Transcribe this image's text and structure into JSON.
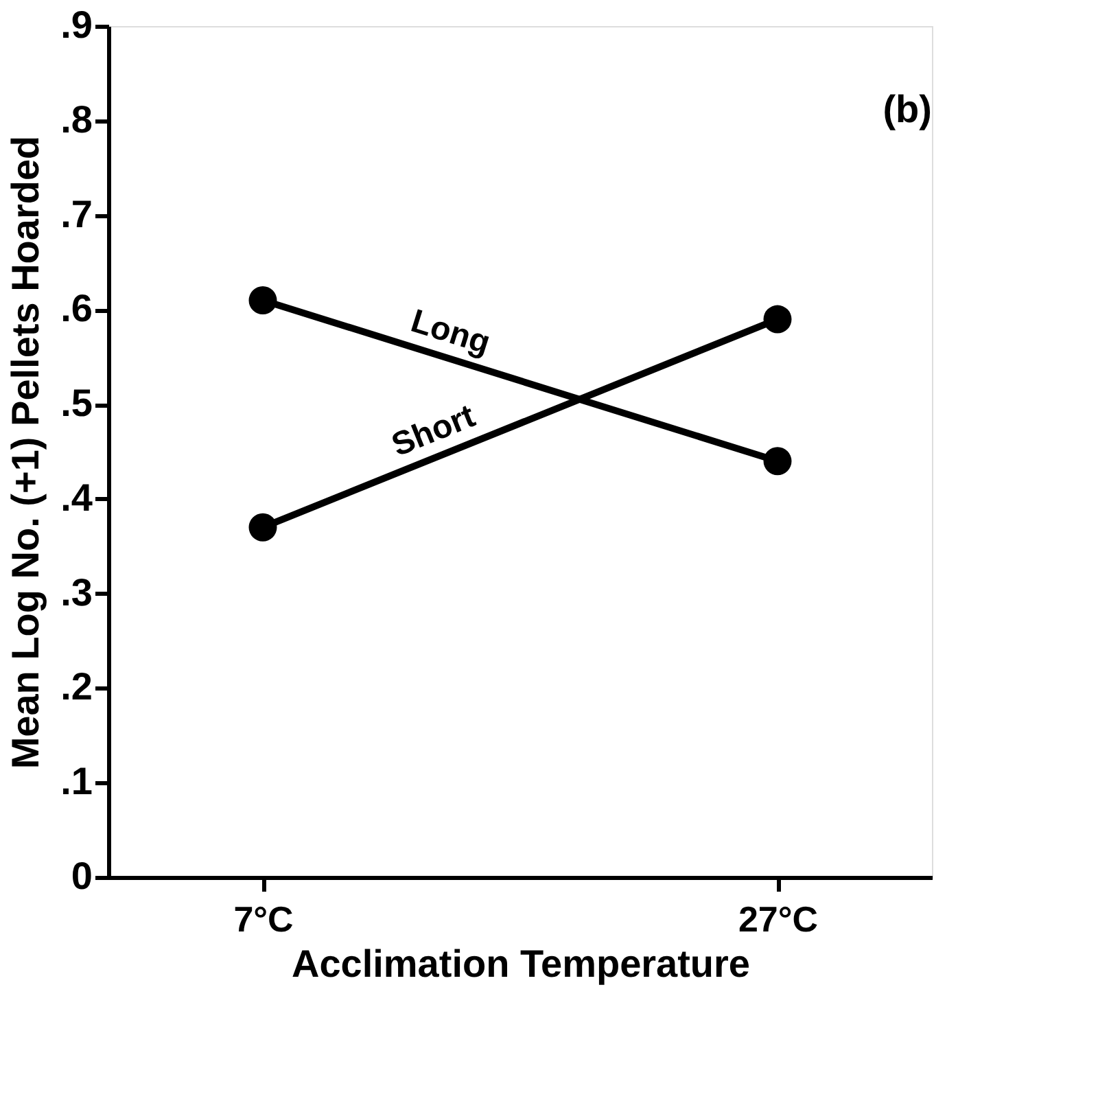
{
  "chart_data": {
    "type": "line",
    "xlabel": "Acclimation  Temperature",
    "ylabel": "Mean Log No. (+1) Pellets Hoarded",
    "categories": [
      "7°C",
      "27°C"
    ],
    "series": [
      {
        "name": "Long",
        "color": "#000000",
        "values": [
          0.61,
          0.44
        ]
      },
      {
        "name": "Short",
        "color": "#000000",
        "values": [
          0.37,
          0.59
        ]
      }
    ],
    "ylim": [
      0,
      0.9
    ],
    "yticks": [
      0,
      {
        "value": 0.1,
        "label": ".1"
      },
      {
        "value": 0.2,
        "label": ".2"
      },
      {
        "value": 0.3,
        "label": ".3"
      },
      {
        "value": 0.4,
        "label": ".4"
      },
      {
        "value": 0.5,
        "label": ".5"
      },
      {
        "value": 0.6,
        "label": ".6"
      },
      {
        "value": 0.7,
        "label": ".7"
      },
      {
        "value": 0.8,
        "label": ".8"
      },
      {
        "value": 0.9,
        "label": ".9"
      }
    ],
    "annotations": [
      "(b)"
    ],
    "legend": false,
    "grid": false,
    "marker": "circle",
    "line_style": "solid"
  }
}
